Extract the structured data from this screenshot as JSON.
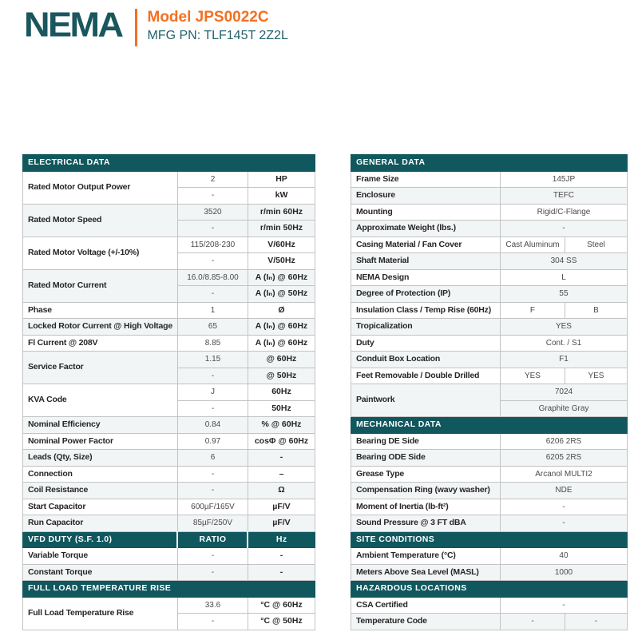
{
  "page": {
    "brand": "NEMA",
    "model_label": "Model JPS0022C",
    "mfg_pn": "MFG PN: TLF145T 2Z2L"
  },
  "colors": {
    "teal": "#11575E",
    "orange": "#F37021",
    "row_stripe": "#f2f5f6",
    "border_gray": "#c3c3c3"
  },
  "tables": {
    "left": {
      "blocks": [
        {
          "type": "section",
          "label": "ELECTRICAL DATA"
        },
        {
          "type": "group",
          "label": "Rated Motor Output Power",
          "entries": [
            {
              "value": "2",
              "unit": "HP"
            },
            {
              "value": "-",
              "unit": "kW"
            }
          ]
        },
        {
          "type": "group",
          "label": "Rated Motor Speed",
          "entries": [
            {
              "value": "3520",
              "unit": "r/min 60Hz"
            },
            {
              "value": "-",
              "unit": "r/min 50Hz"
            }
          ]
        },
        {
          "type": "group",
          "label": "Rated Motor Voltage (+/-10%)",
          "entries": [
            {
              "value": "115/208-230",
              "unit": "V/60Hz"
            },
            {
              "value": "-",
              "unit": "V/50Hz"
            }
          ]
        },
        {
          "type": "group",
          "label": "Rated Motor Current",
          "entries": [
            {
              "value": "16.0/8.85-8.00",
              "unit": "A (Iₙ) @ 60Hz"
            },
            {
              "value": "-",
              "unit": "A (Iₙ) @ 50Hz"
            }
          ]
        },
        {
          "type": "row",
          "label": "Phase",
          "value": "1",
          "unit": "Ø"
        },
        {
          "type": "row",
          "label": "Locked Rotor Current @ High Voltage",
          "value": "65",
          "unit": "A (Iₙ) @ 60Hz"
        },
        {
          "type": "row",
          "label": "Fl Current @ 208V",
          "value": "8.85",
          "unit": "A (Iₙ) @ 60Hz"
        },
        {
          "type": "group",
          "label": "Service Factor",
          "entries": [
            {
              "value": "1.15",
              "unit": "@ 60Hz"
            },
            {
              "value": "-",
              "unit": "@ 50Hz"
            }
          ]
        },
        {
          "type": "group",
          "label": "KVA Code",
          "entries": [
            {
              "value": "J",
              "unit": "60Hz"
            },
            {
              "value": "-",
              "unit": "50Hz"
            }
          ]
        },
        {
          "type": "row",
          "label": "Nominal Efficiency",
          "value": "0.84",
          "unit": "% @ 60Hz"
        },
        {
          "type": "row",
          "label": "Nominal Power Factor",
          "value": "0.97",
          "unit": "cosΦ @ 60Hz"
        },
        {
          "type": "row",
          "label": "Leads (Qty, Size)",
          "value": "6",
          "unit": "-"
        },
        {
          "type": "row",
          "label": "Connection",
          "value": "-",
          "unit": "–"
        },
        {
          "type": "row",
          "label": "Coil Resistance",
          "value": "-",
          "unit": "Ω"
        },
        {
          "type": "row",
          "label": "Start Capacitor",
          "value": "600µF/165V",
          "unit": "µF/V"
        },
        {
          "type": "row",
          "label": "Run Capacitor",
          "value": "85µF/250V",
          "unit": "µF/V"
        },
        {
          "type": "section",
          "label": "VFD DUTY (S.F. 1.0)",
          "col2": "RATIO",
          "col3": "Hz"
        },
        {
          "type": "row",
          "label": "Variable Torque",
          "value": "-",
          "unit": "-"
        },
        {
          "type": "row",
          "label": "Constant Torque",
          "value": "-",
          "unit": "-"
        },
        {
          "type": "section",
          "label": "FULL LOAD TEMPERATURE RISE"
        },
        {
          "type": "group",
          "label": "Full Load Temperature Rise",
          "entries": [
            {
              "value": "33.6",
              "unit": "°C @ 60Hz"
            },
            {
              "value": "-",
              "unit": "°C @ 50Hz"
            }
          ]
        }
      ]
    },
    "right": {
      "blocks": [
        {
          "type": "section",
          "label": "GENERAL DATA"
        },
        {
          "type": "row",
          "label": "Frame Size",
          "values": [
            "145JP"
          ]
        },
        {
          "type": "row",
          "label": "Enclosure",
          "values": [
            "TEFC"
          ]
        },
        {
          "type": "row",
          "label": "Mounting",
          "values": [
            "Rigid/C-Flange"
          ]
        },
        {
          "type": "row",
          "label": "Approximate Weight (lbs.)",
          "values": [
            "-"
          ]
        },
        {
          "type": "row",
          "label": "Casing Material / Fan Cover",
          "values": [
            "Cast Aluminum",
            "Steel"
          ]
        },
        {
          "type": "row",
          "label": "Shaft Material",
          "values": [
            "304 SS"
          ]
        },
        {
          "type": "row",
          "label": "NEMA Design",
          "values": [
            "L"
          ]
        },
        {
          "type": "row",
          "label": "Degree of Protection (IP)",
          "values": [
            "55"
          ]
        },
        {
          "type": "row",
          "label": "Insulation Class / Temp Rise (60Hz)",
          "values": [
            "F",
            "B"
          ]
        },
        {
          "type": "row",
          "label": "Tropicalization",
          "values": [
            "YES"
          ]
        },
        {
          "type": "row",
          "label": "Duty",
          "values": [
            "Cont. / S1"
          ]
        },
        {
          "type": "row",
          "label": "Conduit Box Location",
          "values": [
            "F1"
          ]
        },
        {
          "type": "row",
          "label": "Feet Removable / Double Drilled",
          "values": [
            "YES",
            "YES"
          ]
        },
        {
          "type": "group",
          "label": "Paintwork",
          "entries": [
            "7024",
            "Graphite Gray"
          ]
        },
        {
          "type": "section",
          "label": "MECHANICAL DATA"
        },
        {
          "type": "row",
          "label": "Bearing DE Side",
          "values": [
            "6206 2RS"
          ]
        },
        {
          "type": "row",
          "label": "Bearing ODE Side",
          "values": [
            "6205 2RS"
          ]
        },
        {
          "type": "row",
          "label": "Grease Type",
          "values": [
            "Arcanol MULTI2"
          ]
        },
        {
          "type": "row",
          "label": "Compensation Ring (wavy washer)",
          "values": [
            "NDE"
          ]
        },
        {
          "type": "row",
          "label": "Moment of Inertia (lb-ft²)",
          "values": [
            "-"
          ]
        },
        {
          "type": "row",
          "label": "Sound Pressure @ 3 FT dBA",
          "values": [
            "-"
          ]
        },
        {
          "type": "section",
          "label": "SITE CONDITIONS"
        },
        {
          "type": "row",
          "label": "Ambient Temperature (°C)",
          "values": [
            "40"
          ]
        },
        {
          "type": "row",
          "label": "Meters Above Sea Level (MASL)",
          "values": [
            "1000"
          ]
        },
        {
          "type": "section",
          "label": "HAZARDOUS LOCATIONS"
        },
        {
          "type": "row",
          "label": "CSA Certified",
          "values": [
            "-"
          ]
        },
        {
          "type": "row",
          "label": "Temperature Code",
          "values": [
            "-",
            "-"
          ]
        }
      ]
    }
  }
}
